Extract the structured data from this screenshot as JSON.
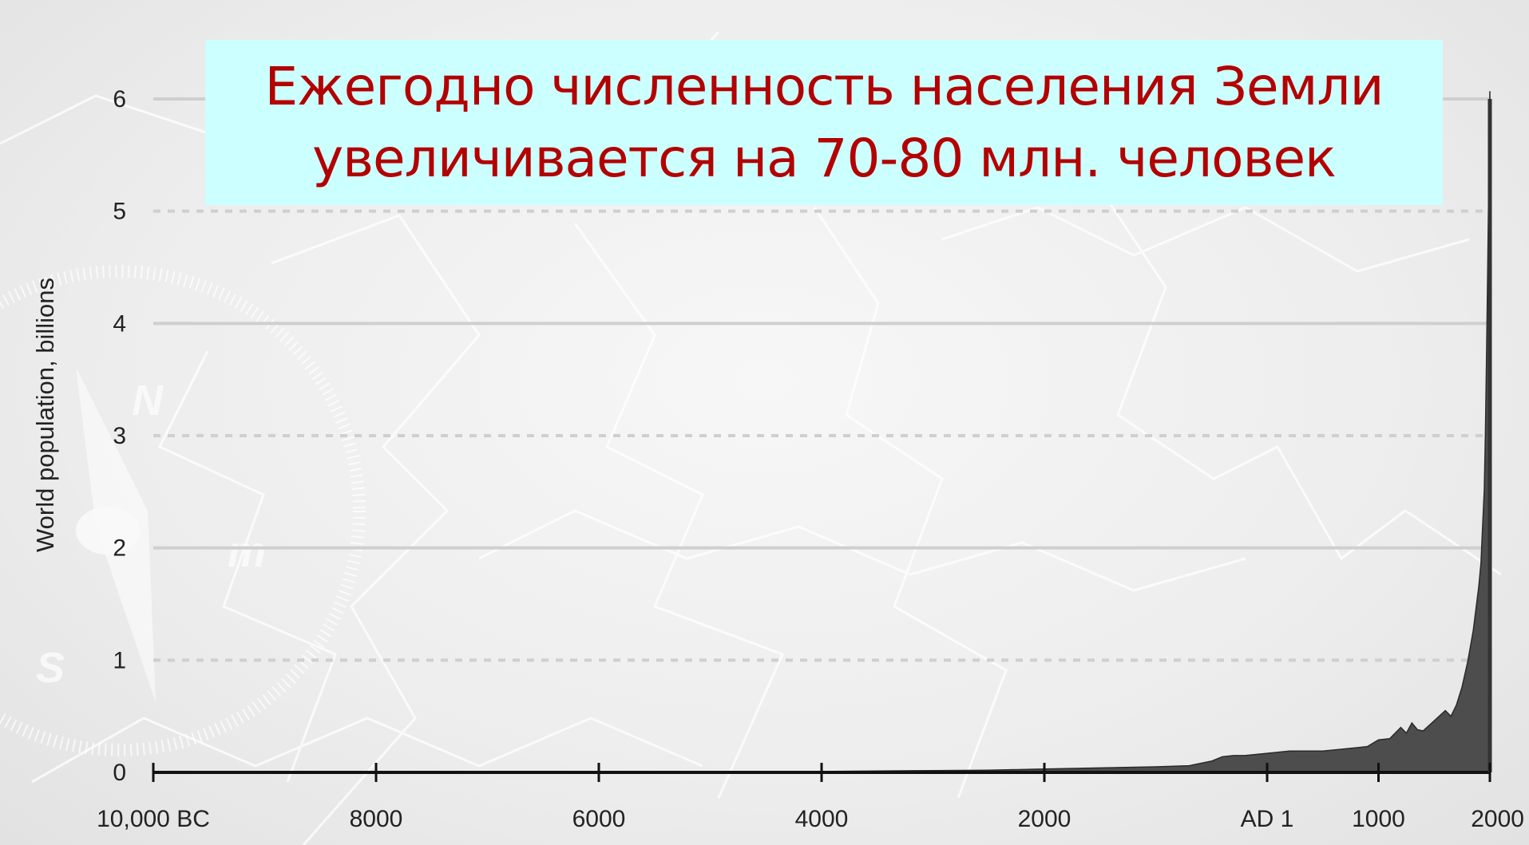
{
  "slide": {
    "title_line1": "Ежегодно численность населения Земли",
    "title_line2": "увеличивается на 70-80 млн. человек"
  },
  "background": {
    "compass_letters": [
      "N",
      "m",
      "S"
    ]
  },
  "colors": {
    "title_text": "#b30000",
    "title_background": "#ccffff",
    "area_fill": "#4d4d4d",
    "axis": "#111111"
  },
  "chart_data": {
    "type": "area",
    "title": "",
    "xlabel": "",
    "ylabel": "World population, billions",
    "xlim": [
      -10000,
      2000
    ],
    "ylim": [
      0,
      6
    ],
    "grid": true,
    "x_ticks": [
      {
        "value": -10000,
        "label": "10,000 BC"
      },
      {
        "value": -8000,
        "label": "8000"
      },
      {
        "value": -6000,
        "label": "6000"
      },
      {
        "value": -4000,
        "label": "4000"
      },
      {
        "value": -2000,
        "label": "2000"
      },
      {
        "value": 0,
        "label": "AD 1"
      },
      {
        "value": 1000,
        "label": "1000"
      },
      {
        "value": 2000,
        "label": "2000"
      }
    ],
    "y_ticks": [
      {
        "value": 0,
        "label": "0"
      },
      {
        "value": 1,
        "label": "1"
      },
      {
        "value": 2,
        "label": "2"
      },
      {
        "value": 3,
        "label": "3"
      },
      {
        "value": 4,
        "label": "4"
      },
      {
        "value": 5,
        "label": "5"
      },
      {
        "value": 6,
        "label": "6"
      }
    ],
    "series": [
      {
        "x": [
          -10000,
          -8000,
          -6000,
          -5000,
          -4000,
          -3000,
          -2500,
          -2000,
          -1500,
          -1000,
          -700,
          -500,
          -400,
          -300,
          -200,
          -100,
          0,
          200,
          500,
          700,
          800,
          900,
          1000,
          1100,
          1200,
          1250,
          1300,
          1350,
          1400,
          1500,
          1600,
          1650,
          1700,
          1750,
          1800,
          1850,
          1900,
          1920,
          1940,
          1950,
          1960,
          1970,
          1980,
          1990,
          2000
        ],
        "values": [
          0.004,
          0.005,
          0.006,
          0.007,
          0.008,
          0.016,
          0.02,
          0.03,
          0.04,
          0.05,
          0.06,
          0.1,
          0.14,
          0.15,
          0.15,
          0.16,
          0.17,
          0.19,
          0.19,
          0.21,
          0.22,
          0.23,
          0.29,
          0.3,
          0.4,
          0.35,
          0.44,
          0.38,
          0.37,
          0.46,
          0.55,
          0.5,
          0.6,
          0.76,
          0.98,
          1.26,
          1.65,
          1.86,
          2.3,
          2.52,
          3.02,
          3.7,
          4.44,
          5.27,
          6.07
        ]
      }
    ]
  }
}
